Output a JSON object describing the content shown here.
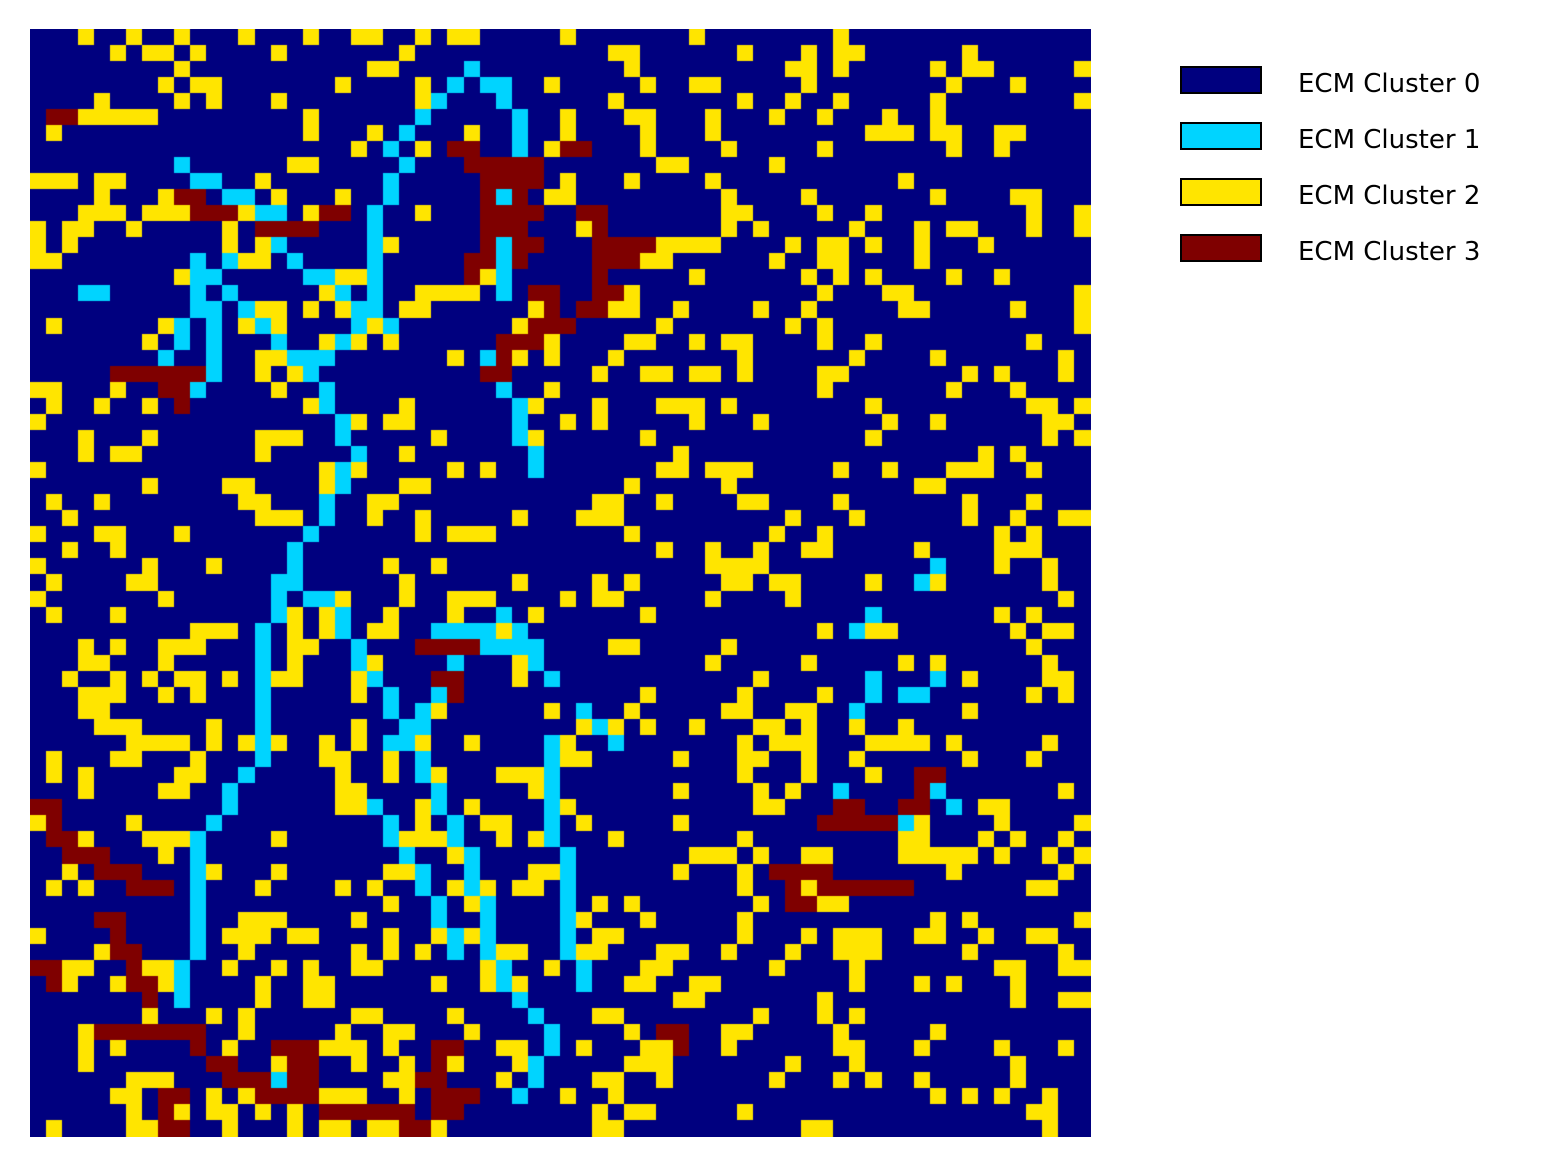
{
  "chart_data": {
    "type": "heatmap",
    "title": "",
    "xlabel": "",
    "ylabel": "",
    "grid": false,
    "axes_visible": false,
    "legend_position": "right",
    "categories": [
      "ECM Cluster 0",
      "ECM Cluster 1",
      "ECM Cluster 2",
      "ECM Cluster 3"
    ],
    "colors": [
      "#00007f",
      "#00d4ff",
      "#ffe500",
      "#7f0000"
    ],
    "rows": 69,
    "cols": 66,
    "background_class": 0,
    "regions": [
      {
        "class": 1,
        "shape": "polyline",
        "points": [
          [
            10,
            14
          ],
          [
            17,
            21
          ],
          [
            20,
            26
          ],
          [
            15,
            34
          ],
          [
            14,
            39
          ],
          [
            14,
            45
          ],
          [
            10,
            50
          ],
          [
            10,
            55
          ],
          [
            9,
            60
          ]
        ]
      },
      {
        "class": 1,
        "shape": "polyline",
        "points": [
          [
            10,
            14
          ],
          [
            11,
            19
          ],
          [
            10,
            22
          ]
        ]
      },
      {
        "class": 1,
        "shape": "polyline",
        "points": [
          [
            15,
            34
          ],
          [
            18,
            35
          ],
          [
            21,
            40
          ],
          [
            27,
            51
          ],
          [
            28,
            56
          ],
          [
            29,
            59
          ]
        ]
      },
      {
        "class": 1,
        "shape": "polyline",
        "points": [
          [
            29,
            59
          ],
          [
            31,
            61
          ],
          [
            32,
            63
          ],
          [
            30,
            66
          ]
        ]
      },
      {
        "class": 1,
        "shape": "polyline",
        "points": [
          [
            22,
            7
          ],
          [
            25,
            4
          ],
          [
            27,
            2
          ],
          [
            29,
            3
          ],
          [
            30,
            7
          ],
          [
            29,
            12
          ],
          [
            29,
            16
          ]
        ]
      },
      {
        "class": 1,
        "shape": "polyline",
        "points": [
          [
            17,
            20
          ],
          [
            19,
            19
          ],
          [
            21,
            16
          ],
          [
            21,
            11
          ],
          [
            23,
            8
          ]
        ]
      },
      {
        "class": 1,
        "shape": "polyline",
        "points": [
          [
            9,
            8
          ],
          [
            13,
            10
          ],
          [
            15,
            11
          ],
          [
            15,
            13
          ],
          [
            19,
            16
          ],
          [
            22,
            18
          ]
        ]
      },
      {
        "class": 1,
        "shape": "polyline",
        "points": [
          [
            8,
            21
          ],
          [
            9,
            18
          ],
          [
            11,
            15
          ],
          [
            12,
            14
          ]
        ]
      },
      {
        "class": 1,
        "shape": "polyline",
        "points": [
          [
            7,
            21
          ],
          [
            8,
            22
          ],
          [
            10,
            21
          ],
          [
            11,
            21
          ]
        ]
      },
      {
        "class": 1,
        "shape": "polyline",
        "points": [
          [
            29,
            36
          ],
          [
            26,
            38
          ],
          [
            25,
            40
          ],
          [
            24,
            43
          ],
          [
            22,
            44
          ]
        ]
      },
      {
        "class": 1,
        "shape": "polyline",
        "points": [
          [
            25,
            37
          ],
          [
            30,
            38
          ],
          [
            31,
            39
          ]
        ]
      },
      {
        "class": 1,
        "shape": "polyline",
        "points": [
          [
            30,
            37
          ],
          [
            32,
            40
          ]
        ]
      },
      {
        "class": 1,
        "shape": "polyline",
        "points": [
          [
            34,
            42
          ],
          [
            35,
            43
          ],
          [
            36,
            44
          ]
        ]
      },
      {
        "class": 1,
        "shape": "polyline",
        "points": [
          [
            32,
            44
          ],
          [
            32,
            48
          ],
          [
            33,
            53
          ],
          [
            33,
            57
          ],
          [
            34,
            59
          ]
        ]
      },
      {
        "class": 1,
        "shape": "polyline",
        "points": [
          [
            21,
            48
          ],
          [
            22,
            50
          ],
          [
            24,
            52
          ],
          [
            25,
            55
          ],
          [
            26,
            57
          ]
        ]
      },
      {
        "class": 1,
        "shape": "polyline",
        "points": [
          [
            28,
            20
          ],
          [
            29,
            21
          ],
          [
            30,
            24
          ]
        ]
      },
      {
        "class": 1,
        "shape": "polyline",
        "points": [
          [
            30,
            25
          ],
          [
            31,
            27
          ]
        ]
      },
      {
        "class": 1,
        "shape": "polyline",
        "points": [
          [
            3,
            16
          ],
          [
            4,
            16
          ]
        ]
      },
      {
        "class": 1,
        "shape": "polyline",
        "points": [
          [
            53,
            49
          ],
          [
            54,
            49
          ]
        ]
      },
      {
        "class": 1,
        "shape": "polyline",
        "points": [
          [
            57,
            48
          ],
          [
            56,
            47
          ]
        ]
      },
      {
        "class": 1,
        "shape": "polyline",
        "points": [
          [
            51,
            42
          ],
          [
            52,
            40
          ]
        ]
      },
      {
        "class": 1,
        "shape": "polyline",
        "points": [
          [
            55,
            34
          ],
          [
            56,
            33
          ]
        ]
      },
      {
        "class": 1,
        "shape": "polyline",
        "points": [
          [
            52,
            36
          ],
          [
            51,
            37
          ]
        ]
      },
      {
        "class": 1,
        "shape": "polyline",
        "points": [
          [
            56,
            40
          ],
          [
            54,
            41
          ]
        ]
      },
      {
        "class": 1,
        "shape": "polyline",
        "points": [
          [
            50,
            47
          ],
          [
            51,
            48
          ]
        ]
      },
      {
        "class": 1,
        "shape": "polyline",
        "points": [
          [
            15,
            65
          ],
          [
            14,
            66
          ]
        ]
      },
      {
        "class": 3,
        "shape": "polyline",
        "points": [
          [
            1,
            5
          ],
          [
            2,
            5
          ]
        ]
      },
      {
        "class": 3,
        "shape": "polyline",
        "points": [
          [
            0,
            48
          ],
          [
            1,
            50
          ],
          [
            3,
            51
          ],
          [
            5,
            52
          ],
          [
            7,
            53
          ]
        ]
      },
      {
        "class": 3,
        "shape": "polyline",
        "points": [
          [
            4,
            55
          ],
          [
            5,
            57
          ],
          [
            6,
            59
          ],
          [
            7,
            60
          ]
        ]
      },
      {
        "class": 3,
        "shape": "polyline",
        "points": [
          [
            0,
            58
          ],
          [
            1,
            59
          ]
        ]
      },
      {
        "class": 3,
        "shape": "polyline",
        "points": [
          [
            4,
            62
          ],
          [
            6,
            62
          ],
          [
            9,
            62
          ],
          [
            11,
            64
          ],
          [
            13,
            65
          ],
          [
            15,
            66
          ]
        ]
      },
      {
        "class": 3,
        "shape": "polyline",
        "points": [
          [
            15,
            63
          ],
          [
            16,
            65
          ],
          [
            18,
            67
          ],
          [
            21,
            67
          ],
          [
            24,
            68
          ]
        ]
      },
      {
        "class": 3,
        "shape": "polyline",
        "points": [
          [
            8,
            66
          ],
          [
            8,
            68
          ]
        ]
      },
      {
        "class": 3,
        "shape": "polyline",
        "points": [
          [
            22,
            67
          ],
          [
            23,
            68
          ],
          [
            25,
            67
          ]
        ]
      },
      {
        "class": 3,
        "shape": "polyline",
        "points": [
          [
            16,
            64
          ],
          [
            17,
            63
          ]
        ]
      },
      {
        "class": 3,
        "shape": "polyline",
        "points": [
          [
            14,
            12
          ],
          [
            16,
            12
          ],
          [
            18,
            11
          ]
        ]
      },
      {
        "class": 3,
        "shape": "polyline",
        "points": [
          [
            9,
            10
          ],
          [
            11,
            11
          ]
        ]
      },
      {
        "class": 3,
        "shape": "polyline",
        "points": [
          [
            5,
            21
          ],
          [
            9,
            21
          ]
        ]
      },
      {
        "class": 3,
        "shape": "polyline",
        "points": [
          [
            8,
            22
          ],
          [
            9,
            23
          ]
        ]
      },
      {
        "class": 3,
        "shape": "polyline",
        "points": [
          [
            26,
            7
          ],
          [
            28,
            9
          ],
          [
            28,
            12
          ],
          [
            27,
            15
          ]
        ]
      },
      {
        "class": 3,
        "shape": "polyline",
        "points": [
          [
            28,
            8
          ],
          [
            30,
            9
          ],
          [
            30,
            11
          ],
          [
            30,
            14
          ]
        ]
      },
      {
        "class": 3,
        "shape": "polyline",
        "points": [
          [
            30,
            8
          ],
          [
            31,
            8
          ]
        ]
      },
      {
        "class": 3,
        "shape": "polyline",
        "points": [
          [
            34,
            11
          ],
          [
            36,
            14
          ],
          [
            34,
            17
          ],
          [
            32,
            18
          ],
          [
            29,
            19
          ],
          [
            28,
            21
          ]
        ]
      },
      {
        "class": 3,
        "shape": "polyline",
        "points": [
          [
            33,
            7
          ],
          [
            34,
            7
          ]
        ]
      },
      {
        "class": 3,
        "shape": "polyline",
        "points": [
          [
            35,
            14
          ],
          [
            37,
            13
          ]
        ]
      },
      {
        "class": 3,
        "shape": "polyline",
        "points": [
          [
            31,
            16
          ],
          [
            32,
            18
          ]
        ]
      },
      {
        "class": 3,
        "shape": "polyline",
        "points": [
          [
            5,
            21
          ],
          [
            6,
            21
          ]
        ]
      },
      {
        "class": 3,
        "shape": "polyline",
        "points": [
          [
            24,
            38
          ],
          [
            27,
            38
          ]
        ]
      },
      {
        "class": 3,
        "shape": "polyline",
        "points": [
          [
            25,
            40
          ],
          [
            26,
            41
          ]
        ]
      },
      {
        "class": 3,
        "shape": "polyline",
        "points": [
          [
            50,
            48
          ],
          [
            52,
            49
          ],
          [
            54,
            48
          ],
          [
            55,
            46
          ]
        ]
      },
      {
        "class": 3,
        "shape": "polyline",
        "points": [
          [
            49,
            49
          ],
          [
            52,
            49
          ]
        ]
      },
      {
        "class": 3,
        "shape": "polyline",
        "points": [
          [
            48,
            52
          ],
          [
            49,
            53
          ],
          [
            51,
            53
          ],
          [
            53,
            53
          ]
        ]
      },
      {
        "class": 3,
        "shape": "polyline",
        "points": [
          [
            46,
            52
          ],
          [
            47,
            54
          ]
        ]
      },
      {
        "class": 3,
        "shape": "polyline",
        "points": [
          [
            39,
            62
          ],
          [
            40,
            63
          ]
        ]
      },
      {
        "class": 3,
        "shape": "polyline",
        "points": [
          [
            25,
            63
          ],
          [
            24,
            65
          ],
          [
            26,
            66
          ]
        ]
      }
    ],
    "density": {
      "class": 2,
      "fraction": 0.16,
      "seed": 4217
    }
  }
}
